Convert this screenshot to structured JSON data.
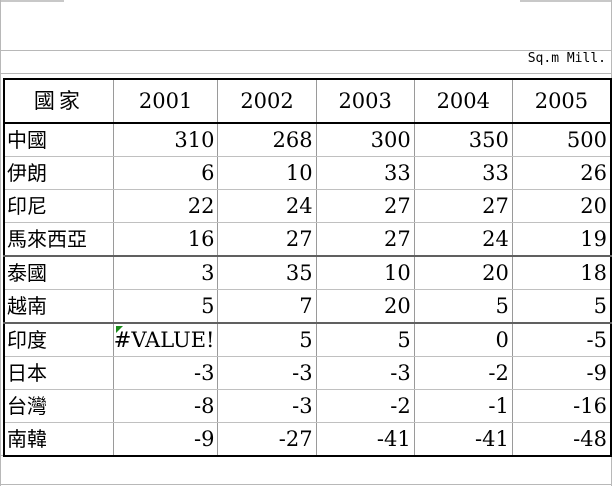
{
  "unit_label": "Sq.m Mill.",
  "table": {
    "columns": [
      "國家",
      "2001",
      "2002",
      "2003",
      "2004",
      "2005"
    ],
    "rows": [
      {
        "country": "中國",
        "values": [
          "310",
          "268",
          "300",
          "350",
          "500"
        ]
      },
      {
        "country": "伊朗",
        "values": [
          "6",
          "10",
          "33",
          "33",
          "26"
        ]
      },
      {
        "country": "印尼",
        "values": [
          "22",
          "24",
          "27",
          "27",
          "20"
        ]
      },
      {
        "country": "馬來西亞",
        "values": [
          "16",
          "27",
          "27",
          "24",
          "19"
        ]
      },
      {
        "country": "泰國",
        "values": [
          "3",
          "35",
          "10",
          "20",
          "18"
        ]
      },
      {
        "country": "越南",
        "values": [
          "5",
          "7",
          "20",
          "5",
          "5"
        ]
      },
      {
        "country": "印度",
        "values": [
          "#VALUE!",
          "5",
          "5",
          "0",
          "-5"
        ]
      },
      {
        "country": "日本",
        "values": [
          "-3",
          "-3",
          "-3",
          "-2",
          "-9"
        ]
      },
      {
        "country": "台灣",
        "values": [
          "-8",
          "-3",
          "-2",
          "-1",
          "-16"
        ]
      },
      {
        "country": "南韓",
        "values": [
          "-9",
          "-27",
          "-41",
          "-41",
          "-48"
        ]
      }
    ]
  },
  "colors": {
    "error_indicator": "#1a8a1a",
    "grid": "#b8b8b8"
  }
}
